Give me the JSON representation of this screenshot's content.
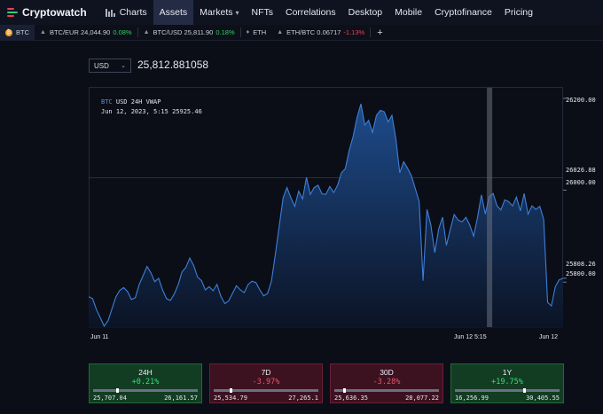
{
  "nav": {
    "brand": "Cryptowatch",
    "items": [
      "Charts",
      "Assets",
      "Markets",
      "NFTs",
      "Correlations",
      "Desktop",
      "Mobile",
      "Cryptofinance",
      "Pricing"
    ],
    "active": "Assets"
  },
  "tabs": [
    {
      "label": "BTC",
      "type": "asset"
    },
    {
      "label": "BTC/EUR 24,044.90",
      "change": "0.08%",
      "dir": "up"
    },
    {
      "label": "BTC/USD 25,811.90",
      "change": "0.18%",
      "dir": "up"
    },
    {
      "label": "ETH",
      "type": "asset"
    },
    {
      "label": "ETH/BTC 0.06717",
      "change": "-1.13%",
      "dir": "down"
    }
  ],
  "tab_add": "+",
  "currency": {
    "selected": "USD"
  },
  "price": "25,812.881058",
  "chart_info": {
    "series": "BTC",
    "title": "USD 24H VWAP",
    "hover": "Jun 12, 2023, 5:15 25925.46"
  },
  "chart_data": {
    "type": "area",
    "ylim": [
      25700,
      26225
    ],
    "yticks": [
      "26200.00",
      "26000.00",
      "25800.00"
    ],
    "y_markers": {
      "crosshair": "26026.88",
      "last": "25808.26"
    },
    "xticks": [
      "Jun 11",
      "Jun 12 5:15",
      "Jun 12"
    ],
    "crosshair_x": 0.845,
    "color": "#3d7fd9",
    "values": [
      25768,
      25764,
      25740,
      25722,
      25704,
      25716,
      25742,
      25768,
      25782,
      25788,
      25779,
      25762,
      25766,
      25795,
      25814,
      25834,
      25820,
      25801,
      25808,
      25783,
      25764,
      25760,
      25774,
      25794,
      25822,
      25832,
      25852,
      25836,
      25811,
      25803,
      25783,
      25790,
      25781,
      25795,
      25769,
      25753,
      25759,
      25776,
      25792,
      25783,
      25777,
      25795,
      25802,
      25799,
      25783,
      25770,
      25775,
      25802,
      25860,
      25922,
      25984,
      26006,
      25984,
      25965,
      25998,
      25981,
      26028,
      25991,
      26006,
      26011,
      25992,
      25991,
      26008,
      25995,
      26011,
      26038,
      26047,
      26087,
      26117,
      26158,
      26188,
      26142,
      26152,
      26126,
      26163,
      26174,
      26171,
      26149,
      26163,
      26112,
      26038,
      26062,
      26048,
      26031,
      26003,
      25975,
      25803,
      25958,
      25924,
      25864,
      25916,
      25941,
      25880,
      25915,
      25947,
      25935,
      25931,
      25941,
      25924,
      25900,
      25941,
      25990,
      25948,
      25986,
      25993,
      25966,
      25957,
      25979,
      25975,
      25966,
      25985,
      25955,
      25993,
      25948,
      25966,
      25958,
      25965,
      25937,
      25756,
      25748,
      25790,
      25805,
      25808
    ]
  },
  "periods": [
    {
      "label": "24H",
      "change": "+0.21%",
      "low": "25,707.04",
      "high": "26,161.57",
      "pos": 0.23,
      "trend": "up"
    },
    {
      "label": "7D",
      "change": "-3.97%",
      "low": "25,534.79",
      "high": "27,265.1",
      "pos": 0.16,
      "trend": "down"
    },
    {
      "label": "30D",
      "change": "-3.28%",
      "low": "25,636.35",
      "high": "28,077.22",
      "pos": 0.09,
      "trend": "down"
    },
    {
      "label": "1Y",
      "change": "+19.75%",
      "low": "16,256.99",
      "high": "30,405.55",
      "pos": 0.66,
      "trend": "up"
    }
  ]
}
